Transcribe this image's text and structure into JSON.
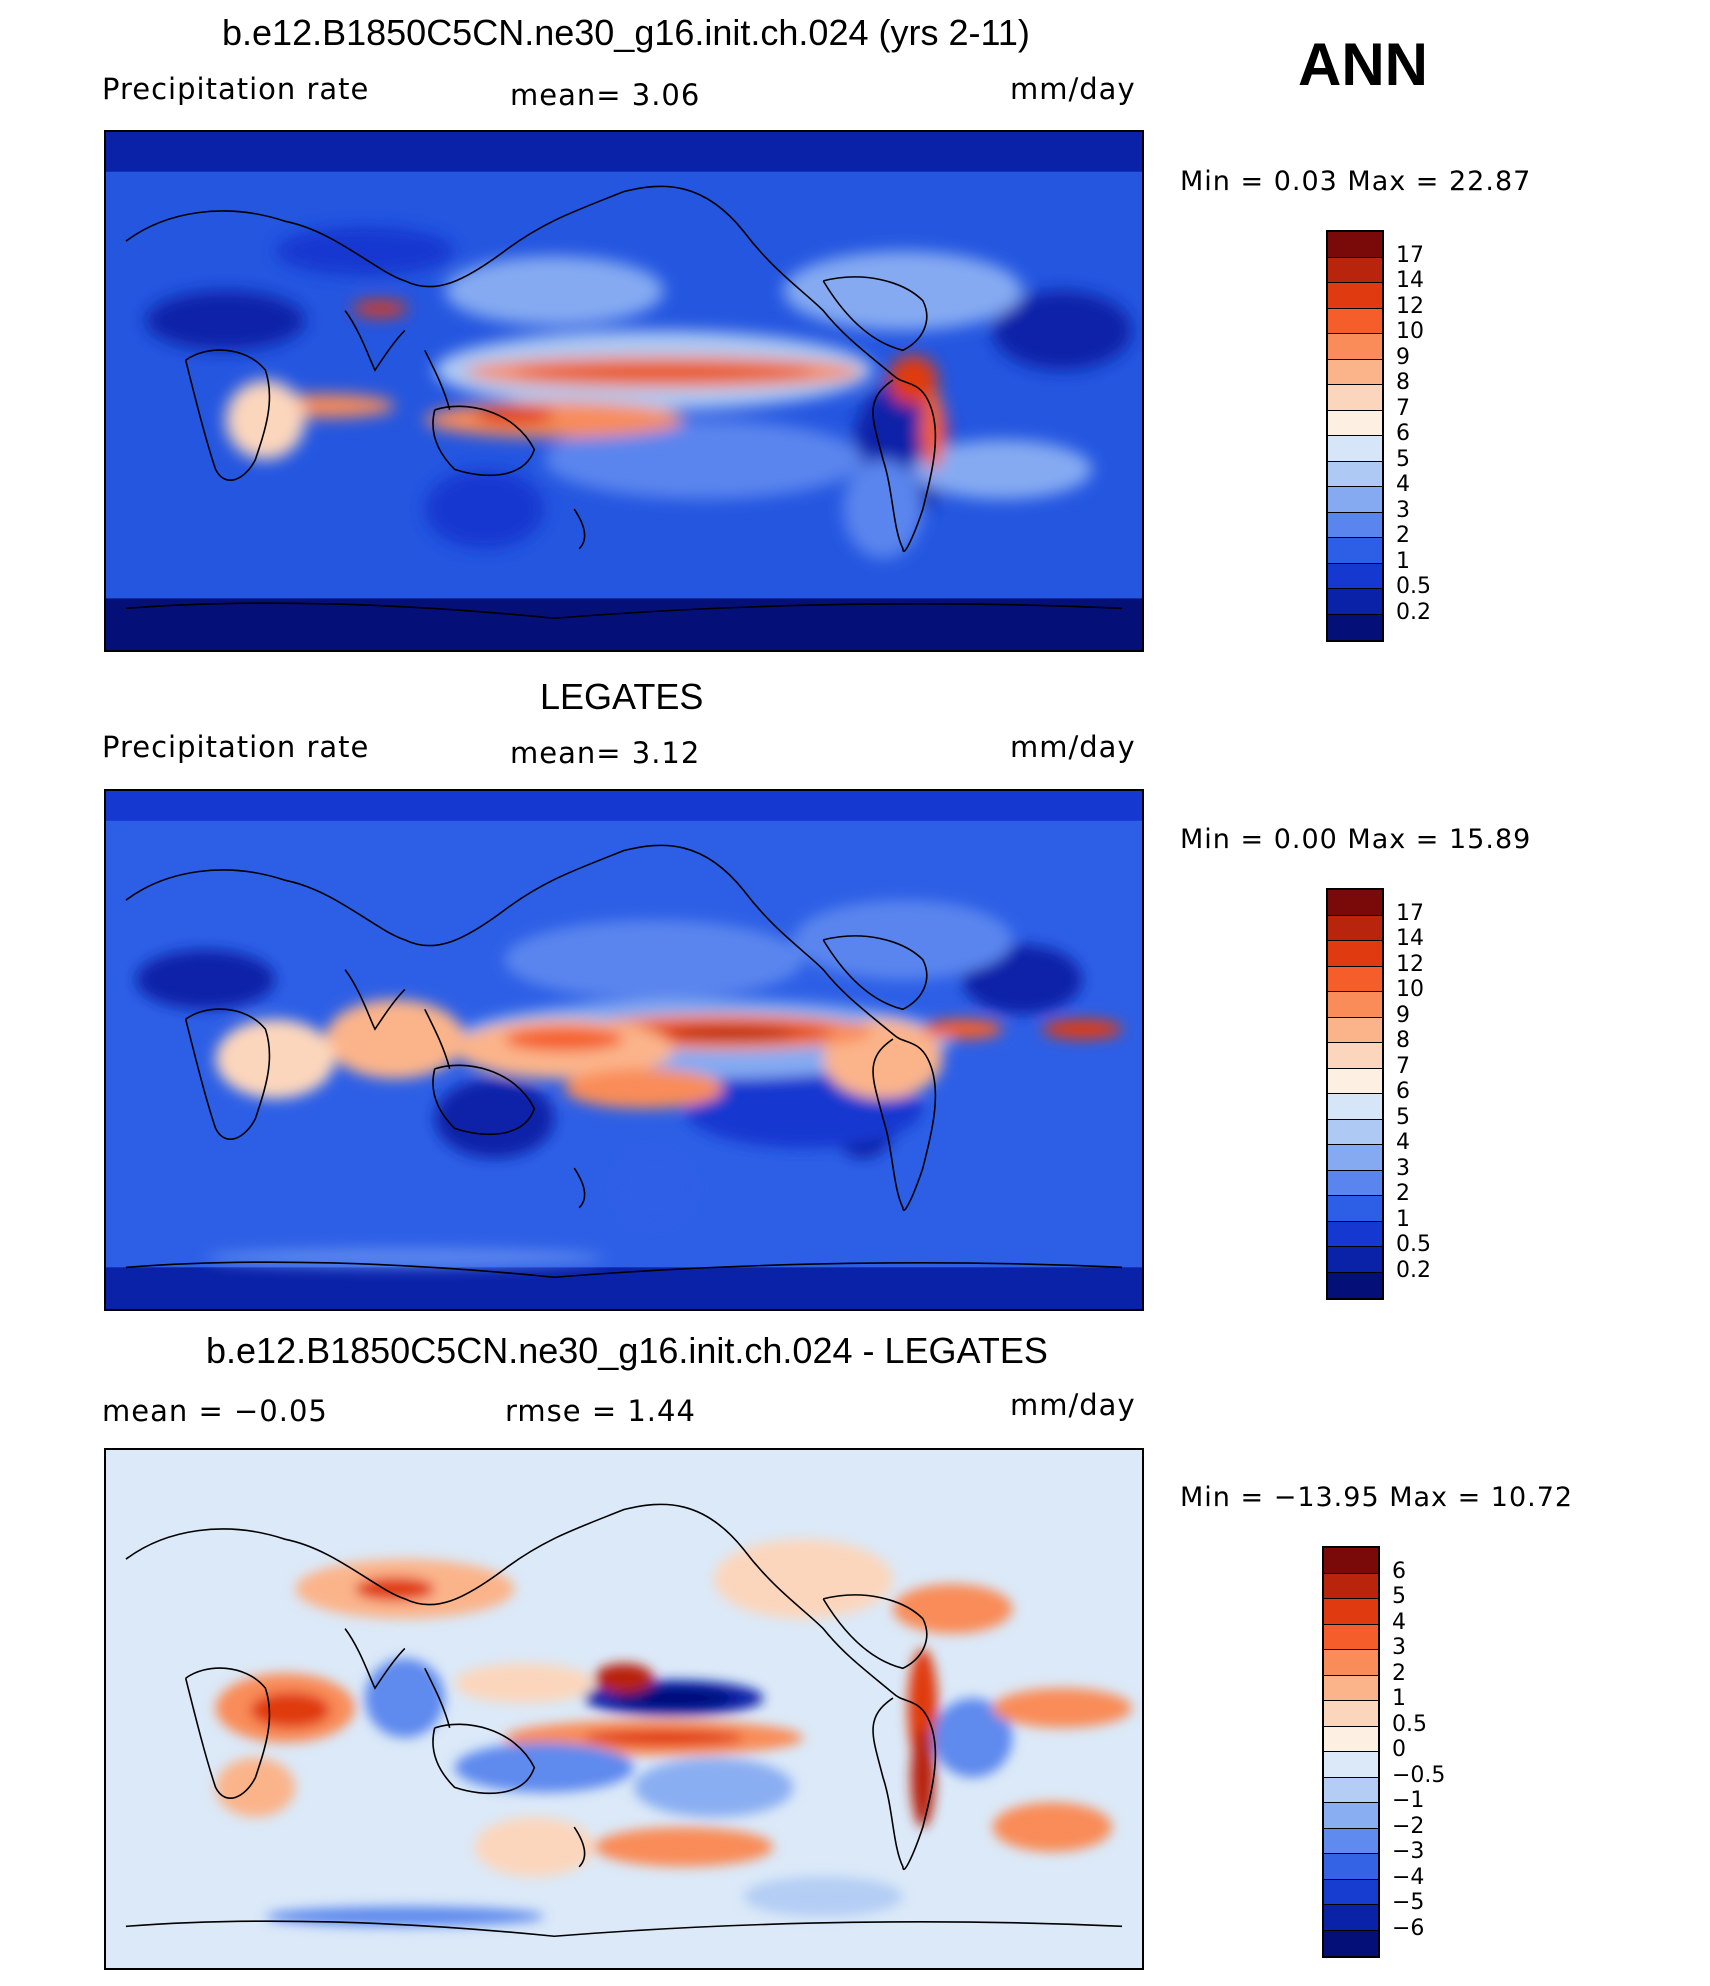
{
  "season": "ANN",
  "panels": [
    {
      "id": "model",
      "title": "b.e12.B1850C5CN.ne30_g16.init.ch.024 (yrs 2-11)",
      "left_label": "Precipitation  rate",
      "center_label": "mean=    3.06",
      "units": "mm/day",
      "minmax": "Min  =     0.03  Max  =    22.87",
      "colorbar": {
        "ticks": [
          "17",
          "14",
          "12",
          "10",
          "9",
          "8",
          "7",
          "6",
          "5",
          "4",
          "3",
          "2",
          "1",
          "0.5",
          "0.2"
        ],
        "colors": [
          "#7a0a0a",
          "#b8240c",
          "#e03a10",
          "#f55e2a",
          "#f98c58",
          "#fbb48a",
          "#fcd6bc",
          "#fdf0e2",
          "#d6e6f8",
          "#adc9f4",
          "#85aaf2",
          "#5a85ee",
          "#2d5fe6",
          "#1438d0",
          "#0a22a8",
          "#050f78"
        ]
      }
    },
    {
      "id": "obs",
      "title": "LEGATES",
      "left_label": "Precipitation  rate",
      "center_label": "mean=    3.12",
      "units": "mm/day",
      "minmax": "Min  =     0.00  Max  =    15.89",
      "colorbar": {
        "ticks": [
          "17",
          "14",
          "12",
          "10",
          "9",
          "8",
          "7",
          "6",
          "5",
          "4",
          "3",
          "2",
          "1",
          "0.5",
          "0.2"
        ],
        "colors": [
          "#7a0a0a",
          "#b8240c",
          "#e03a10",
          "#f55e2a",
          "#f98c58",
          "#fbb48a",
          "#fcd6bc",
          "#fdf0e2",
          "#d6e6f8",
          "#adc9f4",
          "#85aaf2",
          "#5a85ee",
          "#2d5fe6",
          "#1438d0",
          "#0a22a8",
          "#050f78"
        ]
      }
    },
    {
      "id": "diff",
      "title": "b.e12.B1850C5CN.ne30_g16.init.ch.024 - LEGATES",
      "left_label": "mean  =    −0.05",
      "center_label": "rmse  =     1.44",
      "units": "mm/day",
      "minmax": "Min  =  −13.95  Max  =     10.72",
      "colorbar": {
        "ticks": [
          "6",
          "5",
          "4",
          "3",
          "2",
          "1",
          "0.5",
          "0",
          "−0.5",
          "−1",
          "−2",
          "−3",
          "−4",
          "−5",
          "−6"
        ],
        "colors": [
          "#7a0a0a",
          "#b8240c",
          "#e03a10",
          "#f55e2a",
          "#f98c58",
          "#fbb48a",
          "#fcd6bc",
          "#fdf0e2",
          "#dbe9f8",
          "#b3cdf4",
          "#8aaef2",
          "#5f8aee",
          "#3463e6",
          "#173cd0",
          "#0a22a8",
          "#050f78"
        ]
      }
    }
  ]
}
